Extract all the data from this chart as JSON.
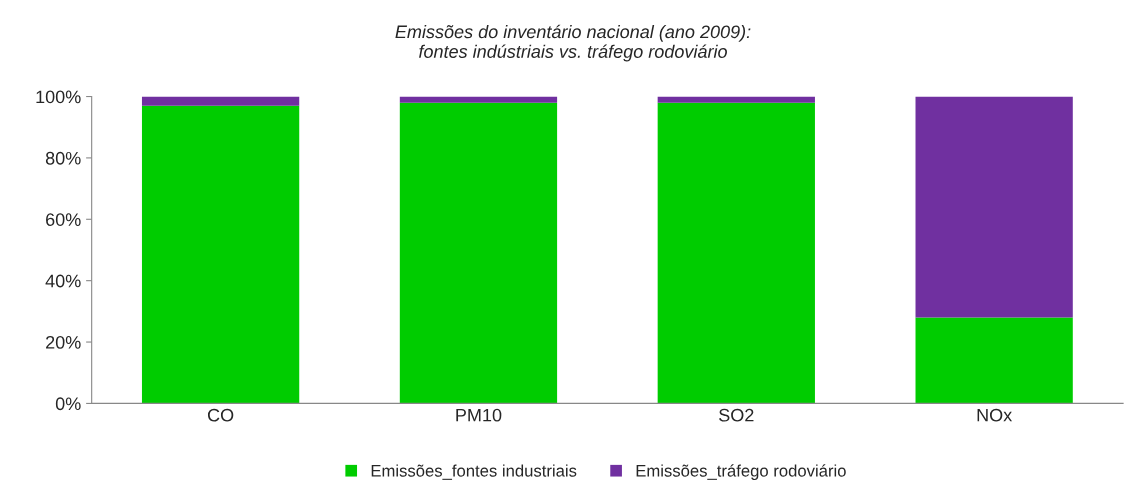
{
  "chart_data": {
    "type": "bar",
    "title": "Emissões do inventário nacional (ano 2009):\nfontes indústriais vs. tráfego rodoviário",
    "categories": [
      "CO",
      "PM10",
      "SO2",
      "NOx"
    ],
    "series": [
      {
        "name": "Emissões_fontes industriais",
        "color": "#00cc00",
        "values": [
          97,
          98,
          98,
          28
        ]
      },
      {
        "name": "Emissões_tráfego rodoviário",
        "color": "#7030a0",
        "values": [
          3,
          2,
          2,
          72
        ]
      }
    ],
    "stacked": true,
    "ylim": [
      0,
      100
    ],
    "yticks": [
      {
        "value": 0,
        "label": "0%"
      },
      {
        "value": 20,
        "label": "20%"
      },
      {
        "value": 40,
        "label": "40%"
      },
      {
        "value": 60,
        "label": "60%"
      },
      {
        "value": 80,
        "label": "80%"
      },
      {
        "value": 100,
        "label": "100%"
      }
    ],
    "grid": false,
    "legend": "bottom"
  }
}
